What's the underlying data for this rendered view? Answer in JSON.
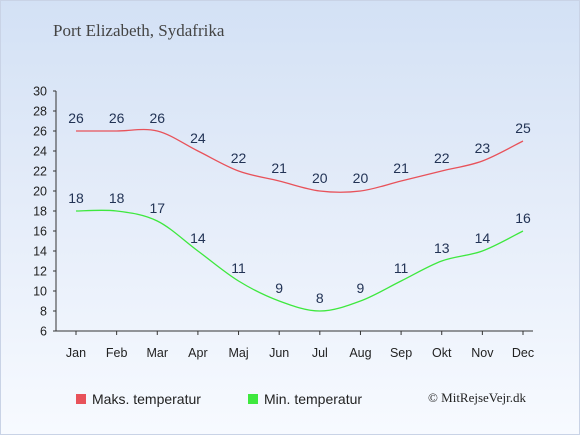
{
  "title": "Port Elizabeth, Sydafrika",
  "credit": "© MitRejseVejr.dk",
  "chart_data": {
    "type": "line",
    "categories": [
      "Jan",
      "Feb",
      "Mar",
      "Apr",
      "Maj",
      "Jun",
      "Jul",
      "Aug",
      "Sep",
      "Okt",
      "Nov",
      "Dec"
    ],
    "series": [
      {
        "name": "Maks. temperatur",
        "color": "#e8525a",
        "values": [
          26,
          26,
          26,
          24,
          22,
          21,
          20,
          20,
          21,
          22,
          23,
          25
        ]
      },
      {
        "name": "Min. temperatur",
        "color": "#3ee83e",
        "values": [
          18,
          18,
          17,
          14,
          11,
          9,
          8,
          9,
          11,
          13,
          14,
          16
        ]
      }
    ],
    "ylim": [
      6,
      30
    ],
    "yticks": [
      6,
      8,
      10,
      12,
      14,
      16,
      18,
      20,
      22,
      24,
      26,
      28,
      30
    ],
    "grid": false,
    "legend": "bottom-left",
    "label_color": "#223355"
  }
}
